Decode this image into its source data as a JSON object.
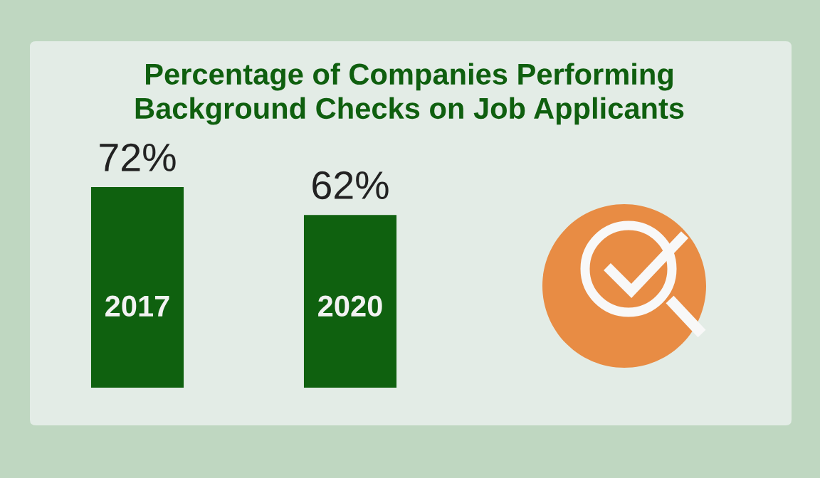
{
  "chart_data": {
    "type": "bar",
    "title": "Percentage of Companies Performing\nBackground Checks on Job Applicants",
    "categories": [
      "2017",
      "2020"
    ],
    "values": [
      72,
      62
    ],
    "value_labels": [
      "72%",
      "62%"
    ],
    "color": "#0f610f",
    "tick_labels": "x"
  }
}
